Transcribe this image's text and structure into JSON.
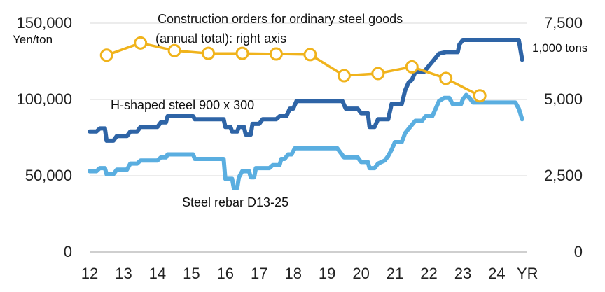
{
  "chart_data": {
    "type": "line",
    "title": "",
    "xlabel": "YR",
    "x_ticks": [
      "12",
      "13",
      "14",
      "15",
      "16",
      "17",
      "18",
      "19",
      "20",
      "21",
      "22",
      "23",
      "24"
    ],
    "xlim": [
      12,
      24.9
    ],
    "left_axis": {
      "unit": "Yen/ton",
      "ylim": [
        0,
        150000
      ],
      "ticks": [
        "0",
        "50,000",
        "100,000",
        "150,000"
      ]
    },
    "right_axis": {
      "unit": "1,000 tons",
      "ylim": [
        0,
        7500
      ],
      "ticks": [
        "0",
        "2,500",
        "5,000",
        "7,500"
      ]
    },
    "series": [
      {
        "name": "H-shaped steel 900 x 300",
        "label": "H-shaped steel 900 x 300",
        "axis": "left",
        "color": "#2e64a6",
        "points": [
          [
            12.0,
            79000
          ],
          [
            12.2,
            79000
          ],
          [
            12.3,
            81000
          ],
          [
            12.45,
            81000
          ],
          [
            12.5,
            73000
          ],
          [
            12.7,
            73000
          ],
          [
            12.8,
            76000
          ],
          [
            13.1,
            76000
          ],
          [
            13.2,
            79000
          ],
          [
            13.4,
            79000
          ],
          [
            13.5,
            82000
          ],
          [
            14.0,
            82000
          ],
          [
            14.1,
            85000
          ],
          [
            14.25,
            85000
          ],
          [
            14.3,
            89000
          ],
          [
            15.05,
            89000
          ],
          [
            15.1,
            87000
          ],
          [
            15.95,
            87000
          ],
          [
            16.0,
            82000
          ],
          [
            16.15,
            82000
          ],
          [
            16.2,
            79000
          ],
          [
            16.35,
            79000
          ],
          [
            16.4,
            82000
          ],
          [
            16.55,
            82000
          ],
          [
            16.6,
            77000
          ],
          [
            16.75,
            77000
          ],
          [
            16.8,
            84000
          ],
          [
            17.0,
            84000
          ],
          [
            17.1,
            87000
          ],
          [
            17.5,
            87000
          ],
          [
            17.6,
            89000
          ],
          [
            17.8,
            89000
          ],
          [
            17.9,
            94000
          ],
          [
            18.0,
            94000
          ],
          [
            18.1,
            99000
          ],
          [
            19.45,
            99000
          ],
          [
            19.55,
            94000
          ],
          [
            19.9,
            94000
          ],
          [
            20.0,
            91000
          ],
          [
            20.2,
            91000
          ],
          [
            20.25,
            82000
          ],
          [
            20.4,
            82000
          ],
          [
            20.5,
            87000
          ],
          [
            20.8,
            87000
          ],
          [
            20.9,
            97000
          ],
          [
            21.2,
            97000
          ],
          [
            21.3,
            106000
          ],
          [
            21.4,
            111000
          ],
          [
            21.5,
            113000
          ],
          [
            21.6,
            118000
          ],
          [
            21.85,
            118000
          ],
          [
            22.0,
            122000
          ],
          [
            22.3,
            130000
          ],
          [
            22.5,
            131000
          ],
          [
            22.85,
            131000
          ],
          [
            22.9,
            136000
          ],
          [
            23.0,
            139000
          ],
          [
            24.65,
            139000
          ],
          [
            24.75,
            126000
          ]
        ]
      },
      {
        "name": "Steel rebar D13-25",
        "label": "Steel rebar D13-25",
        "axis": "left",
        "color": "#5aaee0",
        "points": [
          [
            12.0,
            53000
          ],
          [
            12.2,
            53000
          ],
          [
            12.3,
            55000
          ],
          [
            12.45,
            55000
          ],
          [
            12.5,
            51000
          ],
          [
            12.7,
            51000
          ],
          [
            12.8,
            54000
          ],
          [
            13.1,
            54000
          ],
          [
            13.2,
            58000
          ],
          [
            13.4,
            58000
          ],
          [
            13.5,
            60000
          ],
          [
            14.0,
            60000
          ],
          [
            14.1,
            62000
          ],
          [
            14.25,
            62000
          ],
          [
            14.3,
            64000
          ],
          [
            15.05,
            64000
          ],
          [
            15.1,
            61000
          ],
          [
            15.95,
            61000
          ],
          [
            16.0,
            48000
          ],
          [
            16.2,
            48000
          ],
          [
            16.25,
            42000
          ],
          [
            16.35,
            42000
          ],
          [
            16.4,
            49000
          ],
          [
            16.5,
            53000
          ],
          [
            16.7,
            53000
          ],
          [
            16.75,
            49000
          ],
          [
            16.85,
            49000
          ],
          [
            16.9,
            55000
          ],
          [
            17.3,
            55000
          ],
          [
            17.4,
            57000
          ],
          [
            17.6,
            57000
          ],
          [
            17.65,
            61000
          ],
          [
            17.75,
            61000
          ],
          [
            17.85,
            64000
          ],
          [
            17.95,
            64000
          ],
          [
            18.05,
            68000
          ],
          [
            19.3,
            68000
          ],
          [
            19.4,
            65000
          ],
          [
            19.5,
            62000
          ],
          [
            19.9,
            62000
          ],
          [
            20.0,
            59000
          ],
          [
            20.2,
            59000
          ],
          [
            20.25,
            55000
          ],
          [
            20.4,
            55000
          ],
          [
            20.5,
            58000
          ],
          [
            20.7,
            60000
          ],
          [
            20.8,
            63000
          ],
          [
            20.9,
            67000
          ],
          [
            21.0,
            72000
          ],
          [
            21.2,
            72000
          ],
          [
            21.3,
            78000
          ],
          [
            21.45,
            82000
          ],
          [
            21.6,
            86000
          ],
          [
            21.8,
            86000
          ],
          [
            21.9,
            89000
          ],
          [
            22.1,
            89000
          ],
          [
            22.2,
            94000
          ],
          [
            22.3,
            99000
          ],
          [
            22.45,
            101000
          ],
          [
            22.6,
            101000
          ],
          [
            22.7,
            97000
          ],
          [
            22.95,
            97000
          ],
          [
            23.0,
            100000
          ],
          [
            23.1,
            103000
          ],
          [
            23.2,
            101000
          ],
          [
            23.3,
            98000
          ],
          [
            24.55,
            98000
          ],
          [
            24.65,
            94000
          ],
          [
            24.75,
            87000
          ]
        ]
      },
      {
        "name": "Construction orders for ordinary steel goods (annual total): right axis",
        "label_line1": "Construction orders for ordinary steel goods",
        "label_line2": "(annual total): right axis",
        "axis": "right",
        "color": "#f0b31c",
        "markers": true,
        "points": [
          [
            12.5,
            6450
          ],
          [
            13.5,
            6850
          ],
          [
            14.5,
            6600
          ],
          [
            15.5,
            6510
          ],
          [
            16.5,
            6510
          ],
          [
            17.5,
            6490
          ],
          [
            18.5,
            6470
          ],
          [
            19.5,
            5780
          ],
          [
            20.5,
            5850
          ],
          [
            21.5,
            6070
          ],
          [
            22.5,
            5690
          ],
          [
            23.5,
            5120
          ]
        ]
      }
    ]
  }
}
